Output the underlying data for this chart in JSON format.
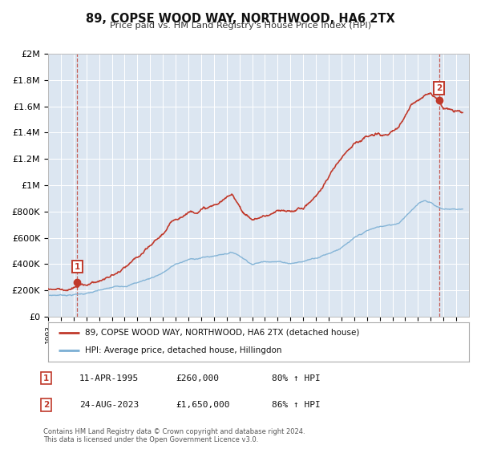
{
  "title": "89, COPSE WOOD WAY, NORTHWOOD, HA6 2TX",
  "subtitle": "Price paid vs. HM Land Registry's House Price Index (HPI)",
  "plot_bg_color": "#dce6f1",
  "hpi_color": "#7bafd4",
  "price_color": "#c0392b",
  "xmin": 1993,
  "xmax": 2026,
  "ymin": 0,
  "ymax": 2000000,
  "yticks": [
    0,
    200000,
    400000,
    600000,
    800000,
    1000000,
    1200000,
    1400000,
    1600000,
    1800000,
    2000000
  ],
  "ytick_labels": [
    "£0",
    "£200K",
    "£400K",
    "£600K",
    "£800K",
    "£1M",
    "£1.2M",
    "£1.4M",
    "£1.6M",
    "£1.8M",
    "£2M"
  ],
  "sale1_x": 1995.28,
  "sale1_y": 260000,
  "sale2_x": 2023.65,
  "sale2_y": 1650000,
  "legend_line1": "89, COPSE WOOD WAY, NORTHWOOD, HA6 2TX (detached house)",
  "legend_line2": "HPI: Average price, detached house, Hillingdon",
  "table_row1_num": "1",
  "table_row1_date": "11-APR-1995",
  "table_row1_price": "£260,000",
  "table_row1_hpi": "80% ↑ HPI",
  "table_row2_num": "2",
  "table_row2_date": "24-AUG-2023",
  "table_row2_price": "£1,650,000",
  "table_row2_hpi": "86% ↑ HPI",
  "footnote1": "Contains HM Land Registry data © Crown copyright and database right 2024.",
  "footnote2": "This data is licensed under the Open Government Licence v3.0.",
  "hpi_anchors_x": [
    1993.0,
    1994.0,
    1995.0,
    1996.0,
    1997.0,
    1998.0,
    1999.0,
    2000.0,
    2001.0,
    2002.0,
    2003.0,
    2004.0,
    2005.0,
    2006.0,
    2007.0,
    2007.5,
    2008.0,
    2008.5,
    2009.0,
    2009.5,
    2010.0,
    2010.5,
    2011.0,
    2012.0,
    2013.0,
    2014.0,
    2015.0,
    2016.0,
    2017.0,
    2018.0,
    2019.0,
    2020.0,
    2020.5,
    2021.0,
    2021.5,
    2022.0,
    2022.5,
    2023.0,
    2023.5,
    2024.0,
    2025.5
  ],
  "hpi_anchors_y": [
    128000,
    133000,
    140000,
    152000,
    168000,
    185000,
    205000,
    235000,
    268000,
    315000,
    378000,
    410000,
    428000,
    440000,
    468000,
    475000,
    455000,
    425000,
    398000,
    408000,
    420000,
    430000,
    428000,
    420000,
    435000,
    470000,
    510000,
    560000,
    620000,
    670000,
    700000,
    710000,
    730000,
    785000,
    840000,
    880000,
    910000,
    900000,
    870000,
    850000,
    855000
  ],
  "price_anchors_x": [
    1993.0,
    1994.5,
    1995.28,
    1996.0,
    1997.0,
    1998.0,
    1999.0,
    2000.0,
    2001.0,
    2002.0,
    2003.0,
    2004.0,
    2005.0,
    2006.0,
    2007.0,
    2007.5,
    2008.0,
    2008.5,
    2009.0,
    2009.5,
    2010.0,
    2011.0,
    2012.0,
    2013.0,
    2014.0,
    2015.0,
    2016.0,
    2017.0,
    2018.0,
    2019.0,
    2020.0,
    2020.5,
    2021.0,
    2021.5,
    2022.0,
    2022.5,
    2023.0,
    2023.65,
    2024.0,
    2025.0,
    2025.5
  ],
  "price_anchors_y": [
    240000,
    252000,
    260000,
    280000,
    315000,
    348000,
    392000,
    450000,
    510000,
    605000,
    710000,
    780000,
    820000,
    840000,
    890000,
    910000,
    840000,
    775000,
    740000,
    755000,
    770000,
    790000,
    770000,
    810000,
    900000,
    1050000,
    1200000,
    1340000,
    1380000,
    1380000,
    1380000,
    1410000,
    1500000,
    1580000,
    1620000,
    1680000,
    1700000,
    1650000,
    1600000,
    1560000,
    1555000
  ]
}
